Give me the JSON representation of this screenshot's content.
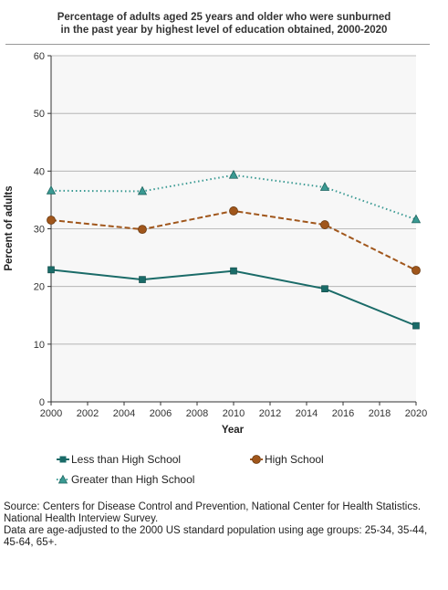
{
  "title_lines": [
    "Percentage of adults aged 25 years and older who were sunburned",
    "in the past year by highest level of education obtained, 2000-2020"
  ],
  "source_lines": [
    "Source: Centers for Disease Control and Prevention, National Center for Health Statistics.",
    "National Health Interview Survey.",
    "Data are age-adjusted to the 2000 US standard population using age groups: 25-34, 35-44,",
    "45-64, 65+."
  ],
  "chart_data": {
    "type": "line",
    "title": "Percentage of adults aged 25 years and older who were sunburned in the past year by highest level of education obtained, 2000-2020",
    "xlabel": "Year",
    "ylabel": "Percent of adults",
    "xlim": [
      2000,
      2020
    ],
    "ylim": [
      0,
      60
    ],
    "x_ticks": [
      "2000",
      "2002",
      "2004",
      "2006",
      "2008",
      "2010",
      "2012",
      "2014",
      "2016",
      "2018",
      "2020"
    ],
    "y_ticks": [
      "0",
      "10",
      "20",
      "30",
      "40",
      "50",
      "60"
    ],
    "grid": "horizontal",
    "legend_position": "bottom",
    "series": [
      {
        "name": "Less than High School",
        "x": [
          2000,
          2005,
          2010,
          2015,
          2020
        ],
        "values": [
          22.9,
          21.2,
          22.7,
          19.6,
          13.2
        ],
        "color": "#1a6b68",
        "line": "solid",
        "marker": "square"
      },
      {
        "name": "High School",
        "x": [
          2000,
          2005,
          2010,
          2015,
          2020
        ],
        "values": [
          31.5,
          29.9,
          33.1,
          30.7,
          22.8
        ],
        "color": "#a0561b",
        "line": "dashed",
        "marker": "circle"
      },
      {
        "name": "Greater than High School",
        "x": [
          2000,
          2005,
          2010,
          2015,
          2020
        ],
        "values": [
          36.6,
          36.5,
          39.3,
          37.2,
          31.6
        ],
        "color": "#3a9a93",
        "line": "dotted",
        "marker": "triangle"
      }
    ]
  }
}
